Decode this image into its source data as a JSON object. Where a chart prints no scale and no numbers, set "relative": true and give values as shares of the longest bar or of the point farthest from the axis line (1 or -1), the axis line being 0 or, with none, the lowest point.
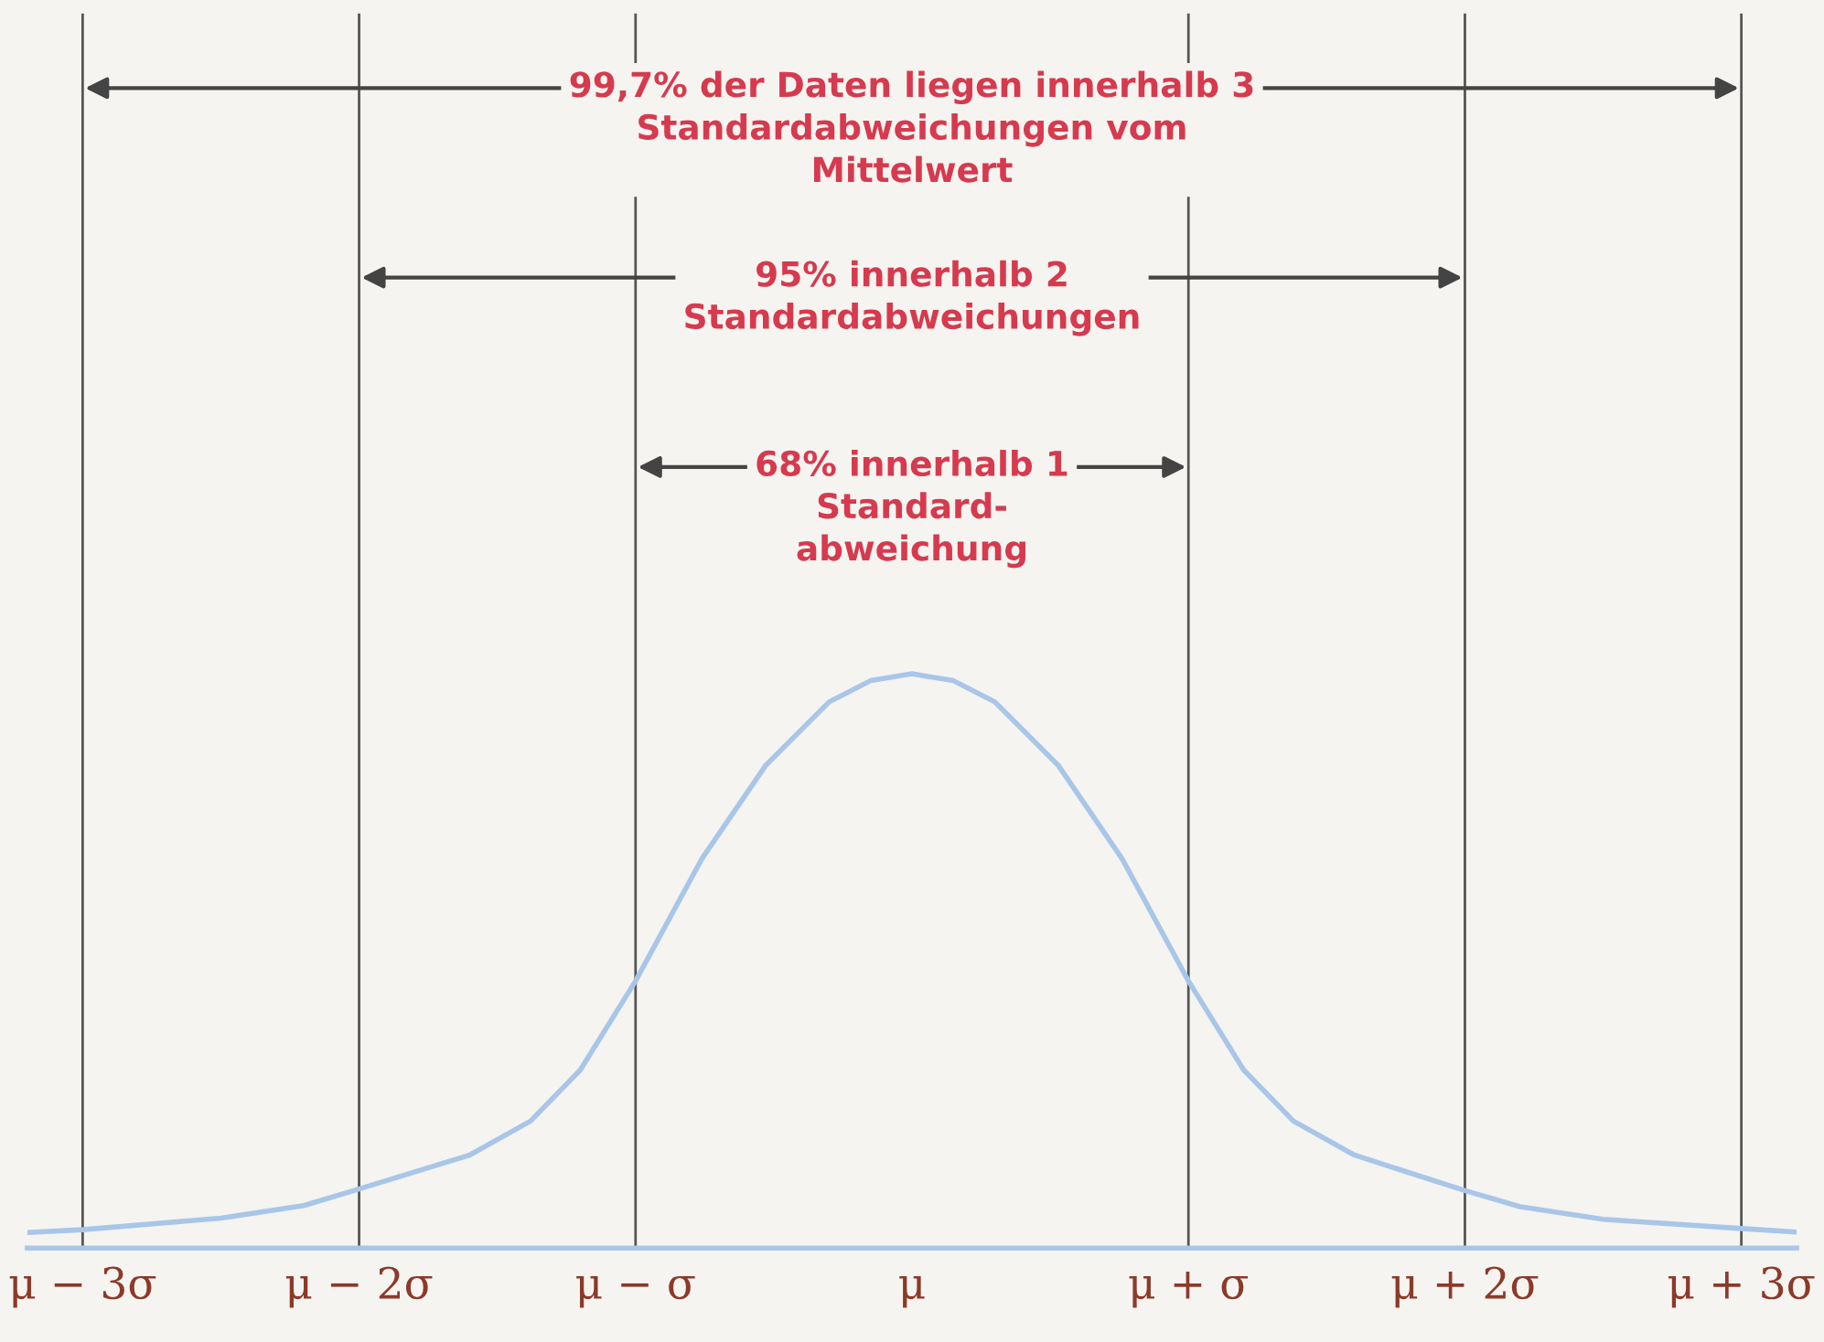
{
  "chart_data": {
    "type": "line",
    "relative": true,
    "x": [
      -3.2,
      -3,
      -2.5,
      -2.2,
      -2,
      -1.6,
      -1.38,
      -1.2,
      -1,
      -0.76,
      -0.53,
      -0.3,
      -0.15,
      0,
      0.15,
      0.3,
      0.53,
      0.76,
      1,
      1.2,
      1.38,
      1.6,
      2,
      2.2,
      2.5,
      3,
      3.2
    ],
    "series": [
      {
        "color": "#a9c6e8",
        "values": [
          0.027,
          0.032,
          0.052,
          0.074,
          0.103,
          0.162,
          0.221,
          0.31,
          0.465,
          0.678,
          0.84,
          0.951,
          0.988,
          1,
          0.988,
          0.951,
          0.84,
          0.678,
          0.465,
          0.31,
          0.221,
          0.162,
          0.1,
          0.072,
          0.05,
          0.034,
          0.028
        ]
      }
    ],
    "xlim": [
      -3.2,
      3.2
    ],
    "xticks": [
      {
        "value": -3,
        "label": "μ − 3σ"
      },
      {
        "value": -2,
        "label": "μ − 2σ"
      },
      {
        "value": -1,
        "label": "μ − σ"
      },
      {
        "value": 0,
        "label": "μ"
      },
      {
        "value": 1,
        "label": "μ + σ"
      },
      {
        "value": 2,
        "label": "μ + 2σ"
      },
      {
        "value": 3,
        "label": "μ + 3σ"
      }
    ],
    "ref_lines": [
      {
        "axis": "x",
        "value": -3,
        "color": "#555555"
      },
      {
        "axis": "x",
        "value": 3,
        "color": "#555555"
      },
      {
        "axis": "x",
        "value": -2,
        "color": "#555555"
      },
      {
        "axis": "x",
        "value": 2,
        "color": "#555555"
      },
      {
        "axis": "x",
        "value": -1,
        "color": "#555555"
      },
      {
        "axis": "x",
        "value": 1,
        "color": "#555555"
      }
    ],
    "annotations": [
      "99,7% der Daten liegen innerhalb 3\nStandardabweichungen vom\nMittelwert",
      "95% innerhalb 2\nStandardabweichungen",
      "68% innerhalb 1\nStandard-\nabweichung"
    ],
    "grid": false,
    "marker": "none",
    "line_style": "solid"
  }
}
